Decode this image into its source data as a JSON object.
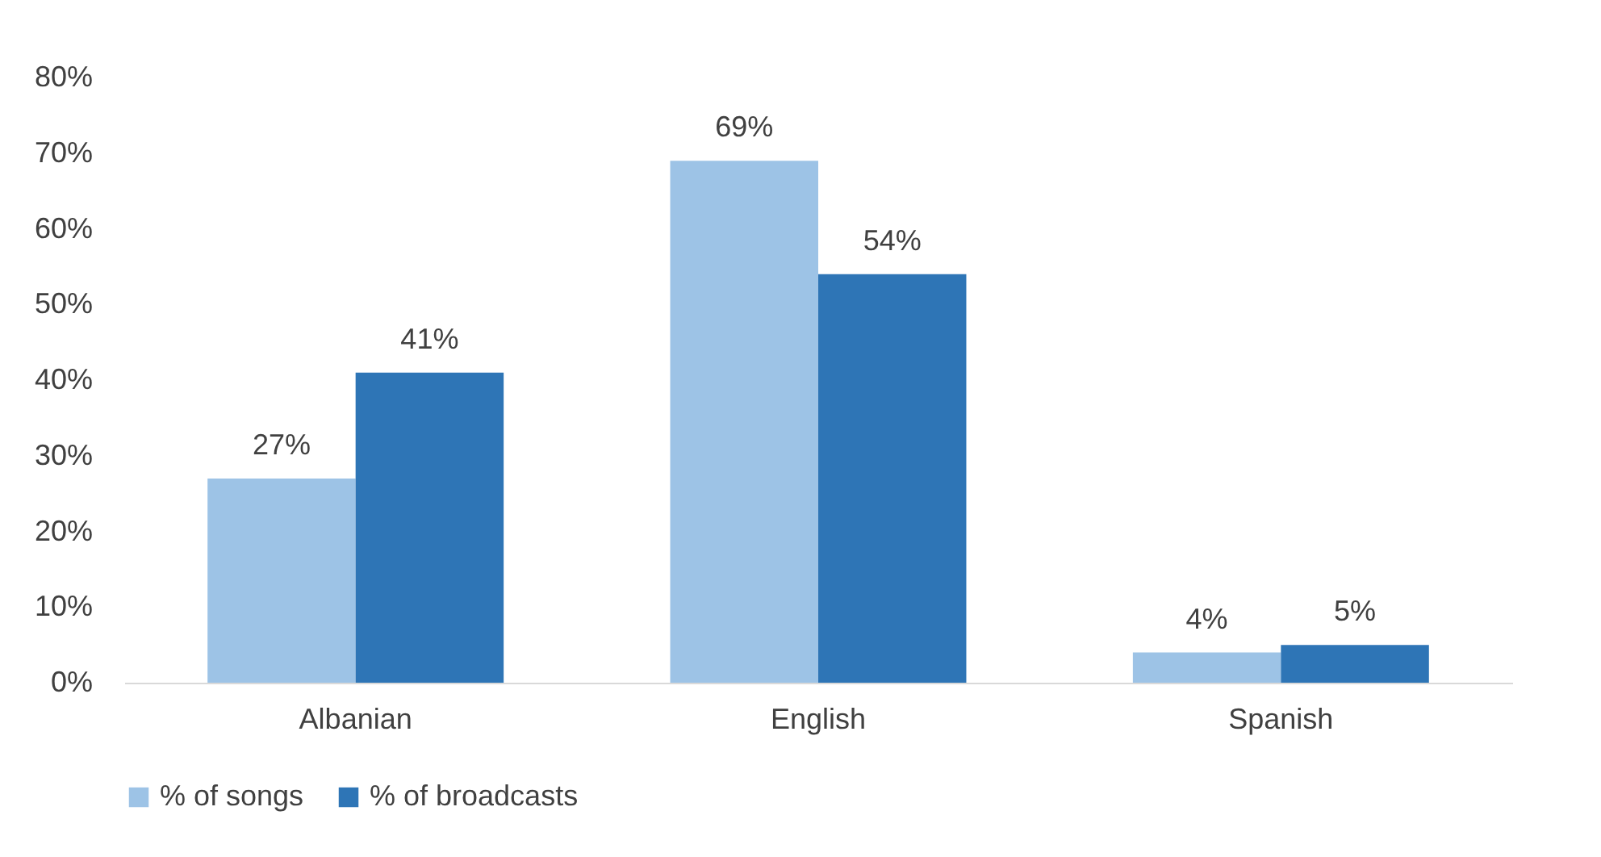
{
  "chart_data": {
    "type": "bar",
    "categories": [
      "Albanian",
      "English",
      "Spanish"
    ],
    "series": [
      {
        "name": "% of songs",
        "color": "#9dc3e6",
        "values": [
          27,
          69,
          4
        ],
        "value_labels": [
          "27%",
          "69%",
          "4%"
        ]
      },
      {
        "name": "% of broadcasts",
        "color": "#2e75b6",
        "values": [
          41,
          54,
          5
        ],
        "value_labels": [
          "41%",
          "54%",
          "5%"
        ]
      }
    ],
    "ylim": [
      0,
      80
    ],
    "yticks": [
      {
        "value": 0,
        "label": "0%"
      },
      {
        "value": 10,
        "label": "10%"
      },
      {
        "value": 20,
        "label": "20%"
      },
      {
        "value": 30,
        "label": "30%"
      },
      {
        "value": 40,
        "label": "40%"
      },
      {
        "value": 50,
        "label": "50%"
      },
      {
        "value": 60,
        "label": "60%"
      },
      {
        "value": 70,
        "label": "70%"
      },
      {
        "value": 80,
        "label": "80%"
      }
    ],
    "grid": false,
    "legend": "bottom"
  }
}
